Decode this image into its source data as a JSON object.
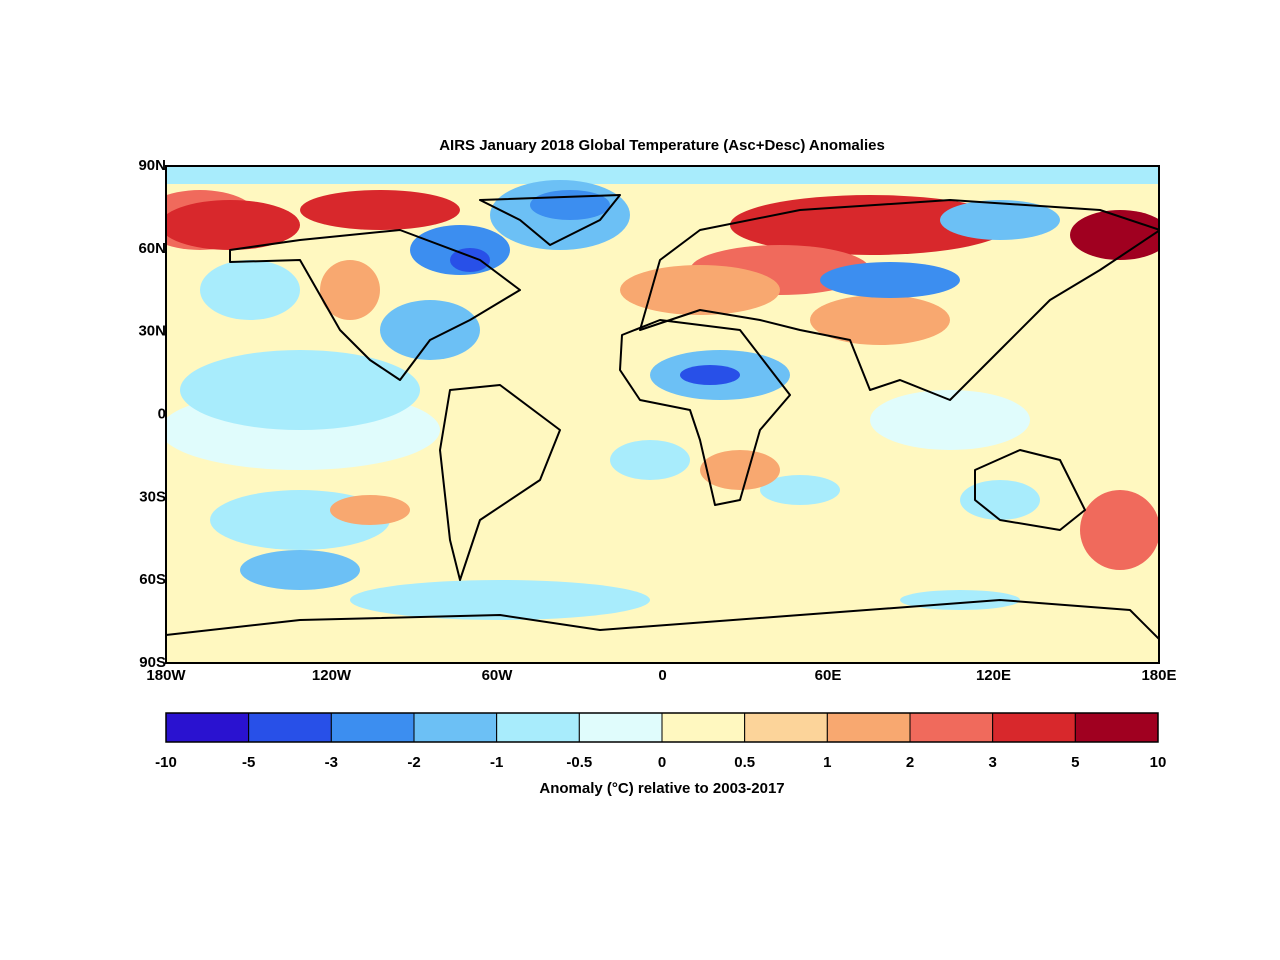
{
  "title": "AIRS January 2018 Global Temperature (Asc+Desc) Anomalies",
  "map": {
    "lon_labels": [
      "180W",
      "120W",
      "60W",
      "0",
      "60E",
      "120E",
      "180E"
    ],
    "lat_labels": [
      "90N",
      "60N",
      "30N",
      "0",
      "30S",
      "60S",
      "90S"
    ]
  },
  "colorbar": {
    "levels": [
      -10,
      -5,
      -3,
      -2,
      -1,
      -0.5,
      0,
      0.5,
      1,
      2,
      3,
      5,
      10
    ],
    "colors": [
      "#2a12d0",
      "#2850e8",
      "#3c8ef0",
      "#6cc0f5",
      "#a8ecfc",
      "#e0fcfc",
      "#fff8c0",
      "#fcd49a",
      "#f8a870",
      "#f06a5c",
      "#d8282c",
      "#a00020"
    ],
    "label": "Anomaly (°C) relative to 2003-2017"
  }
}
